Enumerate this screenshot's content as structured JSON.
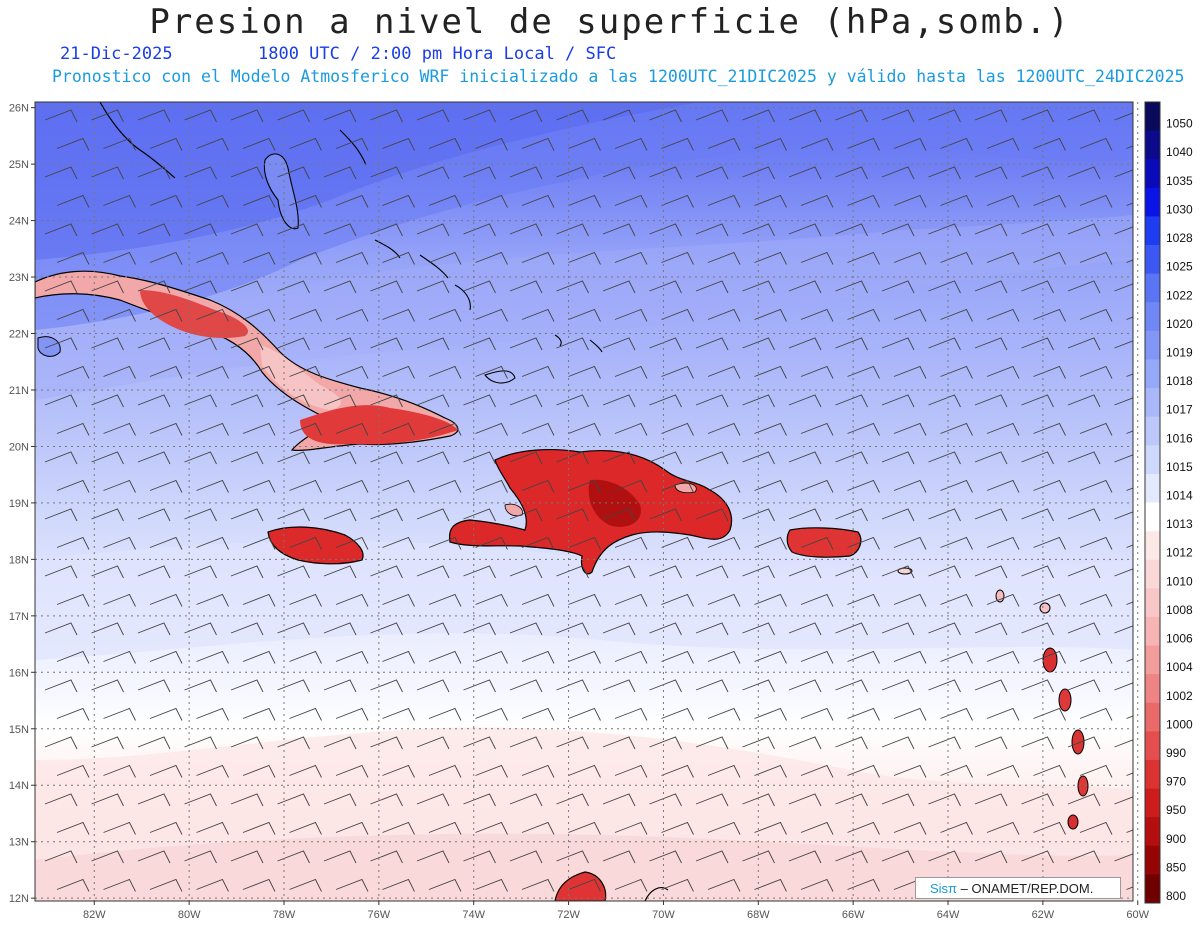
{
  "title": "Presion a nivel de superficie (hPa,somb.)",
  "date": "21-Dic-2025",
  "time_info": "1800 UTC / 2:00 pm Hora Local / SFC",
  "subtitle": "Pronostico con el Modelo Atmosferico WRF inicializado a las 1200UTC_21DIC2025 y válido hasta las  1200UTC_24DIC2025",
  "credit": {
    "brand": "Sisπ",
    "org": " – ONAMET/REP.DOM."
  },
  "axes": {
    "lon_labels": [
      "82W",
      "80W",
      "78W",
      "76W",
      "74W",
      "72W",
      "70W",
      "68W",
      "66W",
      "64W",
      "62W",
      "60W"
    ],
    "lat_labels": [
      "26N",
      "25N",
      "24N",
      "23N",
      "22N",
      "21N",
      "20N",
      "19N",
      "18N",
      "17N",
      "16N",
      "15N",
      "14N",
      "13N",
      "12N"
    ]
  },
  "colorbar": {
    "levels": [
      "1050",
      "1040",
      "1035",
      "1030",
      "1028",
      "1025",
      "1022",
      "1020",
      "1019",
      "1018",
      "1017",
      "1016",
      "1015",
      "1014",
      "1013",
      "1012",
      "1010",
      "1008",
      "1006",
      "1004",
      "1002",
      "1000",
      "990",
      "970",
      "950",
      "900",
      "850",
      "800"
    ],
    "colors": [
      "#0a0a5c",
      "#0a0a8a",
      "#0a0ab8",
      "#0a14e6",
      "#1e3cf0",
      "#3c58f2",
      "#5a74f4",
      "#7088f6",
      "#8296f6",
      "#96a8f8",
      "#aab8fa",
      "#bcc8fa",
      "#ced8fc",
      "#e4eafe",
      "#ffffff",
      "#fde8e8",
      "#fbd8d8",
      "#f8c8c8",
      "#f6b4b4",
      "#f29c9c",
      "#ee8484",
      "#ea6a6a",
      "#e44e4e",
      "#dc3232",
      "#cc1c1c",
      "#b40e0e",
      "#960404",
      "#700000"
    ]
  },
  "colors": {
    "title": "#222222",
    "date": "#1a3de6",
    "subtitle": "#1a9be0"
  }
}
